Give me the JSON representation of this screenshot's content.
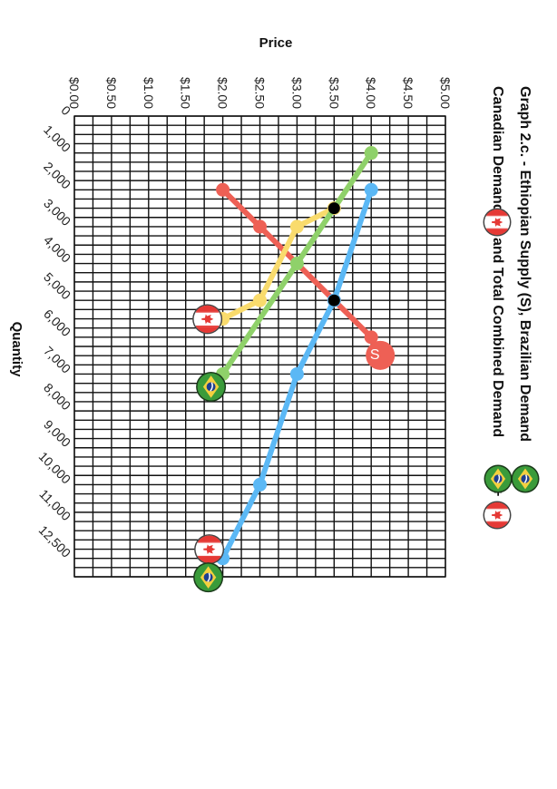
{
  "chart_data": {
    "type": "line",
    "title_line1": "Graph 2.c. - Ethiopian Supply (S), Brazilian Demand",
    "title_line2_a": "Canadian Demand",
    "title_line2_b": "and Total Combined Demand",
    "title_plus": "+",
    "xlabel": "Quantity",
    "ylabel": "Price",
    "x_ticks": [
      "0",
      "1,000",
      "2,000",
      "3,000",
      "4,000",
      "5,000",
      "6,000",
      "7,000",
      "8,000",
      "9,000",
      "10,000",
      "11,000",
      "12,500"
    ],
    "y_ticks": [
      "$0.00",
      "$0.50",
      "$1.00",
      "$1.50",
      "$2.00",
      "$2.50",
      "$3.00",
      "$3.50",
      "$4.00",
      "$4.50",
      "$5.00"
    ],
    "xlim": [
      0,
      12500
    ],
    "ylim": [
      0,
      5
    ],
    "grid": true,
    "series": [
      {
        "name": "S",
        "color": "#ee6055",
        "points": [
          [
            2000,
            2.0
          ],
          [
            3000,
            2.5
          ],
          [
            5000,
            3.5
          ],
          [
            6000,
            4.0
          ]
        ],
        "marker": "S"
      },
      {
        "name": "",
        "color": "#5bb8f5",
        "points": [
          [
            2000,
            4.0
          ],
          [
            5000,
            3.5
          ],
          [
            7000,
            3.0
          ],
          [
            10000,
            2.5
          ],
          [
            12000,
            2.0
          ]
        ],
        "marker": "canada-flag-icon"
      },
      {
        "name": "",
        "color": "#f9db6d",
        "points": [
          [
            1000,
            4.0
          ],
          [
            2500,
            3.5
          ],
          [
            3000,
            3.0
          ],
          [
            5000,
            2.5
          ],
          [
            5500,
            2.0
          ]
        ],
        "marker": "canada-flag-icon"
      },
      {
        "name": "",
        "color": "#8fd16a",
        "points": [
          [
            1000,
            4.0
          ],
          [
            4000,
            3.0
          ],
          [
            7000,
            2.0
          ]
        ],
        "marker": "brazil-flag-icon"
      }
    ],
    "intersections": [
      [
        2500,
        3.5
      ],
      [
        5000,
        3.5
      ]
    ]
  }
}
